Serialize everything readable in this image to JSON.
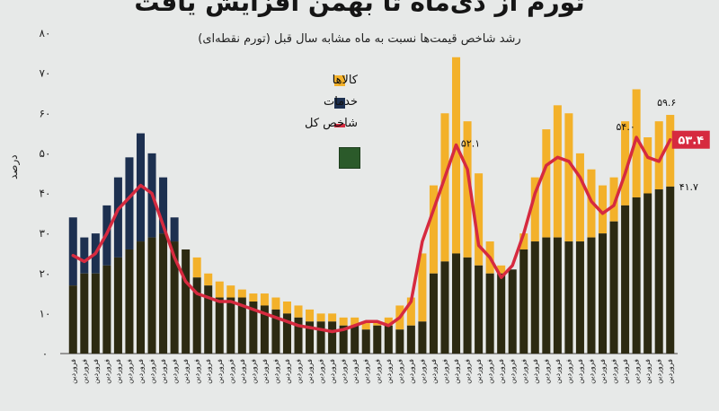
{
  "title": "تورم از دی‌ماه تا بهمن افزایش یافت",
  "subtitle": "رشد شاخص قیمت‌ها نسبت به ماه مشابه سال قبل (تورم نقطه‌ای)",
  "chart_data": {
    "type": "bar",
    "ylabel": "درصد",
    "ylim": [
      0,
      80
    ],
    "yticks": [
      "۰",
      "۱۰",
      "۲۰",
      "۳۰",
      "۴۰",
      "۵۰",
      "۶۰",
      "۷۰",
      "۸۰"
    ],
    "xtick_label": "فروردین",
    "series": [
      {
        "name": "کالاها",
        "color": "#f3b12a",
        "values": [
          17,
          20,
          20,
          22,
          24,
          26,
          28,
          29,
          30,
          28,
          26,
          24,
          20,
          18,
          17,
          16,
          15,
          15,
          14,
          13,
          12,
          11,
          10,
          10,
          9,
          9,
          8,
          8,
          9,
          12,
          14,
          25,
          42,
          60,
          74,
          58,
          45,
          28,
          22,
          21,
          30,
          44,
          56,
          62,
          60,
          50,
          46,
          42,
          44,
          58,
          66,
          54,
          58,
          59.6
        ]
      },
      {
        "name": "خدمات",
        "color": "#1d3050",
        "values": [
          34,
          29,
          30,
          37,
          44,
          49,
          55,
          50,
          44,
          34,
          26,
          19,
          17,
          14,
          14,
          14,
          13,
          12,
          11,
          10,
          9,
          8,
          8,
          8,
          7,
          7,
          6,
          7,
          7,
          6,
          7,
          8,
          20,
          23,
          25,
          24,
          22,
          20,
          20,
          21,
          26,
          28,
          29,
          29,
          28,
          28,
          29,
          30,
          33,
          37,
          39,
          40,
          41,
          41.7
        ]
      },
      {
        "name": "شاخص کل",
        "color": "#d62a3f",
        "values": [
          24.5,
          23,
          25,
          30,
          36,
          39,
          42,
          40,
          32,
          24,
          18,
          15,
          14,
          13,
          13,
          12,
          11,
          10,
          9,
          8,
          7,
          6.5,
          6,
          5.5,
          6,
          7,
          8,
          8,
          7,
          9,
          13,
          28,
          36,
          44,
          52.1,
          46,
          27,
          24,
          19,
          22,
          30,
          40,
          47,
          49,
          48,
          44,
          38,
          35,
          37,
          45,
          54,
          49,
          48,
          53.4
        ]
      }
    ],
    "annotations": [
      {
        "text": "۵۲.۱",
        "series": 2,
        "index": 34
      },
      {
        "text": "۵۴.۰",
        "series": 2,
        "index": 50
      },
      {
        "text": "۵۹.۶",
        "series": 0,
        "index": 53
      },
      {
        "text": "۵۳.۴",
        "series": 2,
        "index": 53,
        "style": "badge"
      },
      {
        "text": "۴۱.۷",
        "series": 1,
        "index": 53
      }
    ],
    "legend_position": "top-center",
    "colors": {
      "goods": "#f3b12a",
      "services": "#1d3050",
      "dark_bar": "#2c2a12",
      "index_line": "#d62a3f",
      "badge": "#d62a3f"
    }
  }
}
